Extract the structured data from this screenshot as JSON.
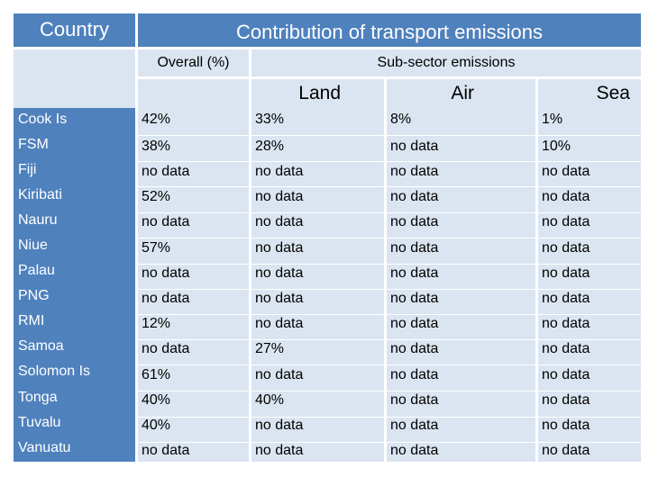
{
  "table": {
    "title_country": "Country",
    "title_contribution": "Contribution of transport emissions",
    "subheader_overall": "Overall (%)",
    "subheader_subsector": "Sub-sector emissions",
    "columns": [
      "Land",
      "Air",
      "Sea"
    ],
    "rows": [
      {
        "country": "Cook Is",
        "overall": "42%",
        "land": "33%",
        "air": "8%",
        "sea": "1%"
      },
      {
        "country": "FSM",
        "overall": "38%",
        "land": "28%",
        "air": "no data",
        "sea": "10%"
      },
      {
        "country": "Fiji",
        "overall": "no data",
        "land": "no data",
        "air": "no data",
        "sea": "no data"
      },
      {
        "country": "Kiribati",
        "overall": "52%",
        "land": "no data",
        "air": "no data",
        "sea": "no data"
      },
      {
        "country": "Nauru",
        "overall": "no data",
        "land": "no data",
        "air": "no data",
        "sea": "no data"
      },
      {
        "country": "Niue",
        "overall": "57%",
        "land": "no data",
        "air": "no data",
        "sea": "no data"
      },
      {
        "country": "Palau",
        "overall": "no data",
        "land": "no data",
        "air": "no data",
        "sea": "no data"
      },
      {
        "country": "PNG",
        "overall": "no data",
        "land": "no data",
        "air": "no data",
        "sea": "no data"
      },
      {
        "country": "RMI",
        "overall": "12%",
        "land": "no data",
        "air": "no data",
        "sea": "no data"
      },
      {
        "country": "Samoa",
        "overall": "no data",
        "land": "27%",
        "air": "no data",
        "sea": "no data"
      },
      {
        "country": "Solomon Is",
        "overall": "61%",
        "land": "no data",
        "air": "no data",
        "sea": "no data"
      },
      {
        "country": "Tonga",
        "overall": "40%",
        "land": "40%",
        "air": "no data",
        "sea": "no data"
      },
      {
        "country": "Tuvalu",
        "overall": "40%",
        "land": "no data",
        "air": "no data",
        "sea": "no data"
      },
      {
        "country": "Vanuatu",
        "overall": "no data",
        "land": "no data",
        "air": "no data",
        "sea": "no data"
      }
    ]
  }
}
